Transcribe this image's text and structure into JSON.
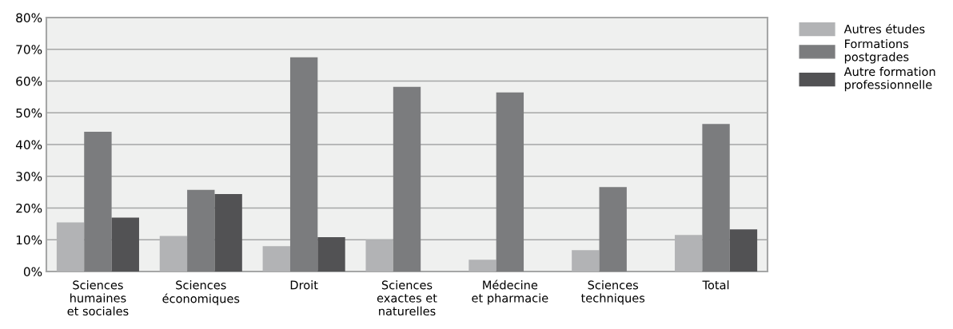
{
  "chart_data": {
    "type": "bar",
    "categories": [
      "Sciences\nhumaines\net sociales",
      "Sciences\néconomiques",
      "Droit",
      "Sciences\nexactes et\nnaturelles",
      "Médecine\net pharmacie",
      "Sciences\ntechniques",
      "Total"
    ],
    "series": [
      {
        "name": "Autres études",
        "color": "#b2b3b5",
        "values": [
          15.5,
          11.2,
          8,
          10,
          3.7,
          6.7,
          11.5
        ]
      },
      {
        "name": "Formations\npostgrades",
        "color": "#7b7c7e",
        "values": [
          44,
          25.7,
          67.5,
          58.2,
          56.4,
          26.6,
          46.5
        ]
      },
      {
        "name": "Autre formation\nprofessionnelle",
        "color": "#525254",
        "values": [
          17,
          24.4,
          10.8,
          null,
          null,
          null,
          13.3
        ]
      }
    ],
    "ylim": [
      0,
      80
    ],
    "yticks": [
      {
        "value": 0,
        "label": "0%"
      },
      {
        "value": 10,
        "label": "10%"
      },
      {
        "value": 20,
        "label": "20%"
      },
      {
        "value": 30,
        "label": "30%"
      },
      {
        "value": 40,
        "label": "40%"
      },
      {
        "value": 50,
        "label": "50%"
      },
      {
        "value": 60,
        "label": "60%"
      },
      {
        "value": 70,
        "label": "70%"
      },
      {
        "value": 80,
        "label": "80%"
      }
    ],
    "grid": "y",
    "legend": "right"
  }
}
